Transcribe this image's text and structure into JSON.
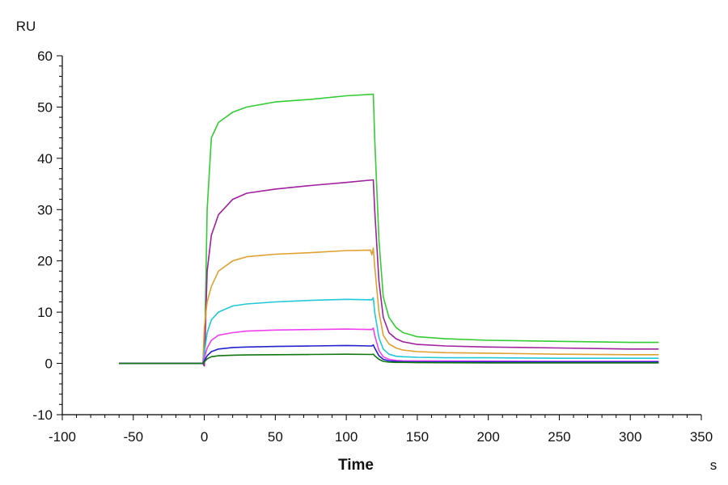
{
  "chart_data": {
    "type": "line",
    "title": "",
    "xlabel": "Time",
    "x_unit": "s",
    "ylabel": "RU",
    "xlim": [
      -100,
      350
    ],
    "ylim": [
      -10,
      60
    ],
    "x_ticks": [
      -100,
      -50,
      0,
      50,
      100,
      150,
      200,
      250,
      300,
      350
    ],
    "y_ticks": [
      -10,
      0,
      10,
      20,
      30,
      40,
      50,
      60
    ],
    "x_tick_labels": [
      "-100",
      "-50",
      "0",
      "50",
      "100",
      "150",
      "200",
      "250",
      "300",
      "350"
    ],
    "y_tick_labels": [
      "-10",
      "0",
      "10",
      "20",
      "30",
      "40",
      "50",
      "60"
    ],
    "grid": false,
    "legend": "none",
    "series": [
      {
        "color": "#33cc33",
        "x": [
          -60,
          -1,
          0,
          2,
          5,
          10,
          20,
          30,
          50,
          75,
          100,
          119,
          120,
          123,
          126,
          130,
          135,
          140,
          150,
          170,
          200,
          250,
          300,
          320
        ],
        "y": [
          0,
          0,
          -0.5,
          30,
          44,
          47,
          49,
          50,
          51,
          51.5,
          52.2,
          52.5,
          44,
          24,
          13,
          9,
          7,
          6,
          5.2,
          4.8,
          4.5,
          4.3,
          4.1,
          4.1
        ]
      },
      {
        "color": "#a020a0",
        "x": [
          -60,
          -1,
          0,
          2,
          5,
          10,
          20,
          30,
          50,
          75,
          100,
          119,
          120,
          123,
          126,
          130,
          135,
          140,
          150,
          170,
          200,
          250,
          300,
          320
        ],
        "y": [
          0,
          0,
          -0.5,
          18,
          25,
          29,
          32,
          33.2,
          34,
          34.7,
          35.3,
          35.8,
          30,
          16,
          9,
          6,
          4.8,
          4.2,
          3.7,
          3.4,
          3.2,
          3.0,
          2.8,
          2.8
        ]
      },
      {
        "color": "#e0a030",
        "x": [
          -60,
          -1,
          0,
          2,
          5,
          10,
          20,
          30,
          50,
          75,
          100,
          117,
          118,
          119,
          120,
          123,
          126,
          130,
          135,
          140,
          150,
          170,
          200,
          250,
          300,
          320
        ],
        "y": [
          0,
          0,
          7,
          12,
          15,
          18,
          20,
          20.8,
          21.3,
          21.6,
          22,
          22.1,
          21.2,
          22.5,
          19,
          10,
          5.5,
          3.8,
          3,
          2.6,
          2.3,
          2.1,
          2.0,
          1.8,
          1.7,
          1.7
        ]
      },
      {
        "color": "#20c8d8",
        "x": [
          -60,
          -1,
          0,
          2,
          5,
          10,
          20,
          30,
          50,
          75,
          100,
          118,
          119,
          120,
          123,
          126,
          130,
          135,
          140,
          150,
          170,
          200,
          250,
          300,
          320
        ],
        "y": [
          0,
          0,
          2,
          6,
          8.5,
          10,
          11.2,
          11.6,
          12,
          12.3,
          12.5,
          12.4,
          12.8,
          10,
          5,
          2.8,
          1.8,
          1.4,
          1.3,
          1.2,
          1.1,
          1.1,
          1.0,
          1.0,
          1.0
        ]
      },
      {
        "color": "#f040f0",
        "x": [
          -60,
          -1,
          0,
          2,
          5,
          10,
          20,
          30,
          50,
          75,
          100,
          118,
          119,
          120,
          123,
          126,
          130,
          135,
          140,
          150,
          200,
          250,
          300,
          320
        ],
        "y": [
          0,
          0,
          1,
          3,
          4.5,
          5.5,
          6.0,
          6.3,
          6.5,
          6.6,
          6.7,
          6.6,
          6.9,
          5.5,
          2.5,
          1.3,
          0.8,
          0.6,
          0.5,
          0.5,
          0.45,
          0.4,
          0.4,
          0.4
        ]
      },
      {
        "color": "#2222cc",
        "x": [
          -60,
          -1,
          0,
          2,
          5,
          10,
          20,
          30,
          50,
          75,
          100,
          118,
          119,
          120,
          123,
          126,
          130,
          135,
          140,
          150,
          200,
          250,
          300,
          320
        ],
        "y": [
          0,
          0,
          0.5,
          1.5,
          2.3,
          2.8,
          3.1,
          3.2,
          3.3,
          3.4,
          3.5,
          3.4,
          3.6,
          3.0,
          1.5,
          0.8,
          0.5,
          0.4,
          0.35,
          0.3,
          0.3,
          0.3,
          0.3,
          0.3
        ]
      },
      {
        "color": "#117711",
        "x": [
          -60,
          -1,
          0,
          2,
          5,
          10,
          20,
          30,
          50,
          75,
          100,
          118,
          119,
          120,
          123,
          126,
          130,
          135,
          140,
          150,
          200,
          250,
          300,
          320
        ],
        "y": [
          0,
          0,
          0.3,
          0.9,
          1.3,
          1.5,
          1.6,
          1.65,
          1.7,
          1.75,
          1.8,
          1.75,
          1.8,
          1.5,
          0.8,
          0.4,
          0.25,
          0.2,
          0.2,
          0.15,
          0.1,
          0.1,
          0.1,
          0.1
        ]
      }
    ]
  }
}
